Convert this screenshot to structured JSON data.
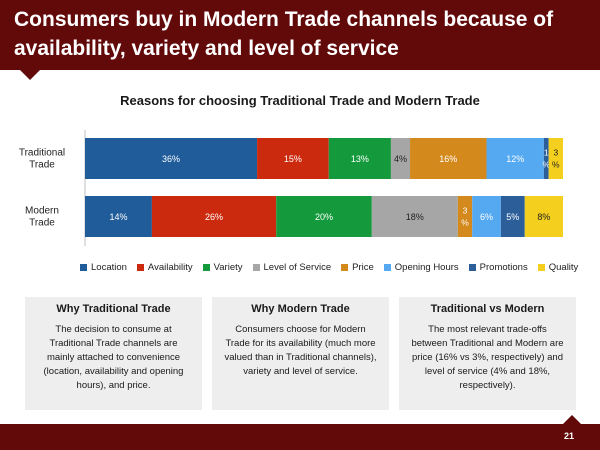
{
  "header": {
    "title": "Consumers buy in Modern Trade channels because of availability, variety and level of service"
  },
  "chart_data": {
    "type": "bar",
    "orientation": "horizontal",
    "stacked": true,
    "title": "Reasons for choosing Traditional Trade and Modern Trade",
    "categories": [
      "Traditional Trade",
      "Modern Trade"
    ],
    "series": [
      {
        "name": "Location",
        "color": "#1f5c99",
        "values": [
          36,
          14
        ],
        "labels": [
          "36%",
          "14%"
        ]
      },
      {
        "name": "Availability",
        "color": "#cc2a0f",
        "values": [
          15,
          26
        ],
        "labels": [
          "15%",
          "26%"
        ]
      },
      {
        "name": "Variety",
        "color": "#149a3c",
        "values": [
          13,
          20
        ],
        "labels": [
          "13%",
          "20%"
        ]
      },
      {
        "name": "Level of Service",
        "color": "#a6a6a6",
        "values": [
          4,
          18
        ],
        "labels": [
          "4%",
          "18%"
        ]
      },
      {
        "name": "Price",
        "color": "#d4891c",
        "values": [
          16,
          3
        ],
        "labels": [
          "16%",
          "3%"
        ]
      },
      {
        "name": "Opening Hours",
        "color": "#55a9f0",
        "values": [
          12,
          6
        ],
        "labels": [
          "12%",
          "6%"
        ]
      },
      {
        "name": "Promotions",
        "color": "#2c5f9a",
        "values": [
          1,
          5
        ],
        "labels": [
          "1%",
          "5%"
        ]
      },
      {
        "name": "Quality",
        "color": "#f4cf1d",
        "values": [
          3,
          8
        ],
        "labels": [
          "3%",
          "8%"
        ]
      }
    ],
    "xlim": [
      0,
      100
    ],
    "grid": false,
    "legend": "bottom"
  },
  "boxes": [
    {
      "title": "Why Traditional Trade",
      "body": "The decision to consume at Traditional Trade channels are mainly attached to convenience (location, availability and opening hours), and price."
    },
    {
      "title": "Why Modern Trade",
      "body": "Consumers choose for Modern Trade for its availability (much more valued than in Traditional channels), variety and level of service."
    },
    {
      "title": "Traditional vs Modern",
      "body": "The most relevant trade-offs between Traditional and Modern are price (16% vs 3%, respectively) and level of service (4% and 18%, respectively)."
    }
  ],
  "footer": {
    "page_number": "21"
  }
}
